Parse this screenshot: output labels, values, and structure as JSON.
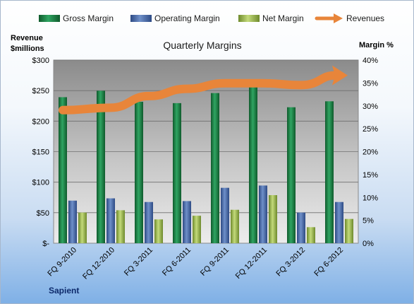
{
  "chart_data": {
    "type": "bar",
    "title": "Quarterly Margins",
    "source_label": "Sapient",
    "y_left_label": [
      "Revenue",
      "$millions"
    ],
    "y_right_label": "Margin %",
    "categories": [
      "FQ 9-2010",
      "FQ 12-2010",
      "FQ 3-2011",
      "FQ 6-2011",
      "FQ 9-2011",
      "FQ 12-2011",
      "FQ 3-2012",
      "FQ 6-2012"
    ],
    "y_left_ticks": [
      "$-",
      "$50",
      "$100",
      "$150",
      "$200",
      "$250",
      "$300"
    ],
    "y_right_ticks": [
      "0%",
      "5%",
      "10%",
      "15%",
      "20%",
      "25%",
      "30%",
      "35%",
      "40%"
    ],
    "ylim_left": [
      0,
      300
    ],
    "ylim_right": [
      0,
      40
    ],
    "grid": true,
    "legend_position": "top",
    "series": [
      {
        "name": "Gross Margin",
        "axis": "right",
        "kind": "bar",
        "color": "#1e8a4c",
        "values": [
          31.9,
          33.3,
          30.9,
          30.6,
          32.8,
          34.9,
          29.7,
          31.0
        ]
      },
      {
        "name": "Operating Margin",
        "axis": "right",
        "kind": "bar",
        "color": "#4c6fae",
        "values": [
          9.3,
          9.8,
          9.0,
          9.2,
          12.1,
          12.6,
          6.7,
          9.0
        ]
      },
      {
        "name": "Net Margin",
        "axis": "right",
        "kind": "bar",
        "color": "#9bb94e",
        "values": [
          6.7,
          7.2,
          5.2,
          6.0,
          7.3,
          10.5,
          3.5,
          5.3
        ]
      },
      {
        "name": "Revenues",
        "axis": "left",
        "kind": "arrow",
        "color": "#e8853a",
        "values": [
          218,
          222,
          241,
          253,
          262,
          262,
          259,
          275
        ]
      }
    ]
  }
}
